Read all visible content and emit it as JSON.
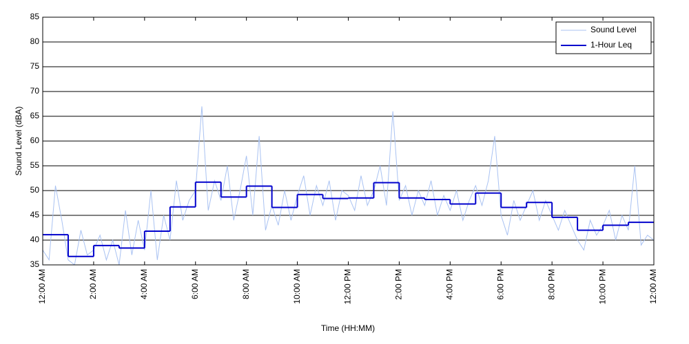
{
  "chart_data": {
    "type": "line",
    "xlabel": "Time (HH:MM)",
    "ylabel": "Sound Level (dBA)",
    "xlim": [
      0,
      24
    ],
    "xticks": [
      {
        "value": 0,
        "label": "12:00 AM"
      },
      {
        "value": 2,
        "label": "2:00 AM"
      },
      {
        "value": 4,
        "label": "4:00 AM"
      },
      {
        "value": 6,
        "label": "6:00 AM"
      },
      {
        "value": 8,
        "label": "8:00 AM"
      },
      {
        "value": 10,
        "label": "10:00 AM"
      },
      {
        "value": 12,
        "label": "12:00 PM"
      },
      {
        "value": 14,
        "label": "2:00 PM"
      },
      {
        "value": 16,
        "label": "4:00 PM"
      },
      {
        "value": 18,
        "label": "6:00 PM"
      },
      {
        "value": 20,
        "label": "8:00 PM"
      },
      {
        "value": 22,
        "label": "10:00 PM"
      },
      {
        "value": 24,
        "label": "12:00 AM"
      }
    ],
    "ylim": [
      35,
      85
    ],
    "yticks": [
      35,
      40,
      45,
      50,
      55,
      60,
      65,
      70,
      75,
      80,
      85
    ],
    "grid": true,
    "legend": "upper right",
    "series": [
      {
        "name": "Sound Level",
        "color": "#a9c2f2",
        "style": "line",
        "x": [
          0,
          0.25,
          0.5,
          0.75,
          1,
          1.25,
          1.5,
          1.75,
          2,
          2.25,
          2.5,
          2.75,
          3,
          3.25,
          3.5,
          3.75,
          4,
          4.25,
          4.5,
          4.75,
          5,
          5.25,
          5.5,
          5.75,
          6,
          6.25,
          6.5,
          6.75,
          7,
          7.25,
          7.5,
          7.75,
          8,
          8.25,
          8.5,
          8.75,
          9,
          9.25,
          9.5,
          9.75,
          10,
          10.25,
          10.5,
          10.75,
          11,
          11.25,
          11.5,
          11.75,
          12,
          12.25,
          12.5,
          12.75,
          13,
          13.25,
          13.5,
          13.75,
          14,
          14.25,
          14.5,
          14.75,
          15,
          15.25,
          15.5,
          15.75,
          16,
          16.25,
          16.5,
          16.75,
          17,
          17.25,
          17.5,
          17.75,
          18,
          18.25,
          18.5,
          18.75,
          19,
          19.25,
          19.5,
          19.75,
          20,
          20.25,
          20.5,
          20.75,
          21,
          21.25,
          21.5,
          21.75,
          22,
          22.25,
          22.5,
          22.75,
          23,
          23.25,
          23.5,
          23.75,
          24
        ],
        "values": [
          38,
          36,
          51,
          44,
          36,
          35,
          42,
          37,
          38,
          41,
          36,
          40,
          35,
          46,
          37,
          44,
          38,
          50,
          36,
          45,
          40,
          52,
          44,
          48,
          50,
          67,
          46,
          52,
          48,
          55,
          44,
          50,
          57,
          45,
          61,
          42,
          47,
          43,
          50,
          44,
          49,
          53,
          45,
          51,
          47,
          52,
          44,
          50,
          49,
          46,
          53,
          47,
          50,
          55,
          47,
          66,
          48,
          51,
          45,
          50,
          47,
          52,
          45,
          49,
          46,
          50,
          44,
          48,
          51,
          47,
          52,
          61,
          45,
          41,
          48,
          44,
          47,
          50,
          44,
          48,
          45,
          42,
          46,
          43,
          40,
          38,
          44,
          41,
          43,
          46,
          40,
          45,
          42,
          55,
          39,
          41,
          40
        ]
      },
      {
        "name": "1-Hour Leq",
        "color": "#0000cc",
        "style": "step",
        "x": [
          0,
          1,
          2,
          3,
          4,
          5,
          6,
          7,
          8,
          9,
          10,
          11,
          12,
          13,
          14,
          15,
          16,
          17,
          18,
          19,
          20,
          21,
          22,
          23
        ],
        "values": [
          41.1,
          36.7,
          38.9,
          38.4,
          41.8,
          46.7,
          51.7,
          48.7,
          50.9,
          46.6,
          49.2,
          48.4,
          48.5,
          51.6,
          48.5,
          48.2,
          47.3,
          49.5,
          46.6,
          47.6,
          44.6,
          42.0,
          43.0,
          43.6
        ]
      }
    ]
  }
}
